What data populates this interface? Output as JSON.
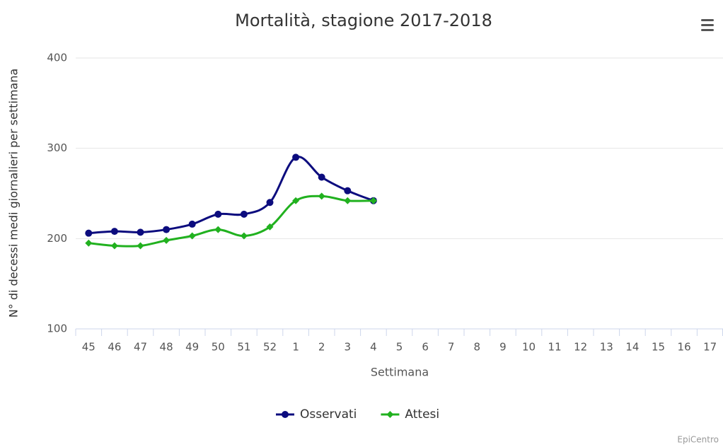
{
  "chart_data": {
    "type": "line",
    "title": "Mortalità, stagione 2017-2018",
    "x_label": "Settimana",
    "y_label": "N° di decessi medi giornalieri per settimana",
    "credit": "EpiCentro",
    "categories": [
      "45",
      "46",
      "47",
      "48",
      "49",
      "50",
      "51",
      "52",
      "1",
      "2",
      "3",
      "4",
      "5",
      "6",
      "7",
      "8",
      "9",
      "10",
      "11",
      "12",
      "13",
      "14",
      "15",
      "16",
      "17"
    ],
    "series": [
      {
        "name": "Osservati",
        "color": "#0c0c7e",
        "marker": "circle",
        "values": [
          206,
          208,
          207,
          210,
          216,
          227,
          227,
          240,
          290,
          268,
          253,
          242,
          null,
          null,
          null,
          null,
          null,
          null,
          null,
          null,
          null,
          null,
          null,
          null,
          null
        ]
      },
      {
        "name": "Attesi",
        "color": "#21b11f",
        "marker": "diamond",
        "values": [
          195,
          192,
          192,
          198,
          203,
          210,
          203,
          213,
          242,
          247,
          242,
          242,
          null,
          null,
          null,
          null,
          null,
          null,
          null,
          null,
          null,
          null,
          null,
          null,
          null
        ]
      }
    ],
    "ylim": [
      100,
      400
    ],
    "yticks": [
      100,
      200,
      300,
      400
    ],
    "grid": true,
    "legend": "bottom"
  }
}
